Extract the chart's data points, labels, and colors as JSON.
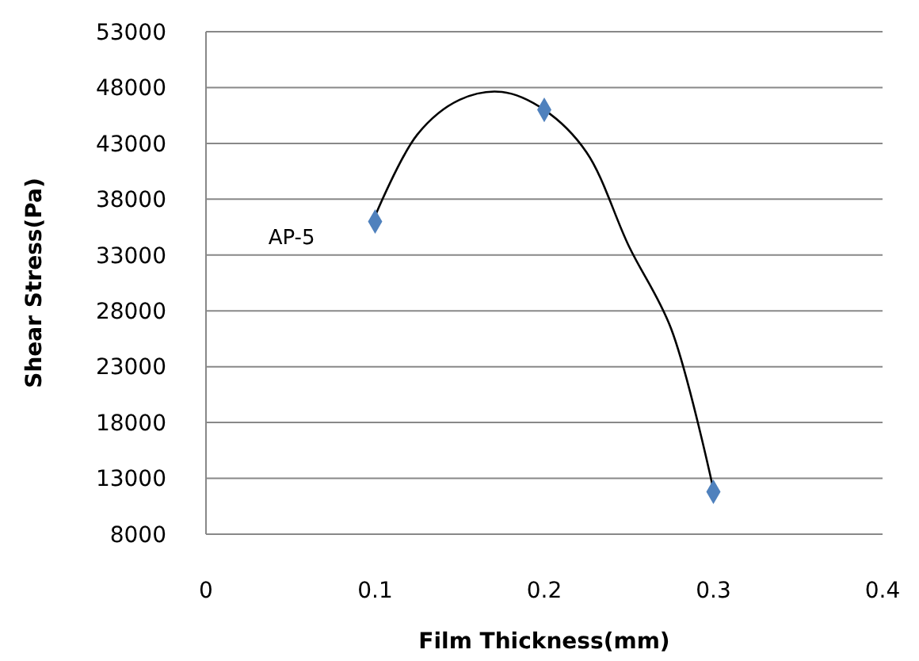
{
  "chart_data": {
    "type": "scatter",
    "xlabel": "Film Thickness(mm)",
    "ylabel": "Shear Stress(Pa)",
    "xlim": [
      0,
      0.4
    ],
    "xticks": [
      0,
      0.1,
      0.2,
      0.3,
      0.4
    ],
    "ylim": [
      8000,
      53000
    ],
    "yticks": [
      8000,
      13000,
      18000,
      23000,
      28000,
      33000,
      38000,
      43000,
      48000,
      53000
    ],
    "grid": "y",
    "series": [
      {
        "name": "AP-5",
        "type": "scatter",
        "marker": "diamond",
        "color": "#4f81bd",
        "x": [
          0.1,
          0.2,
          0.3
        ],
        "values": [
          36000,
          46000,
          11800
        ]
      },
      {
        "type": "line",
        "marker": "none",
        "color": "#000000",
        "x": [
          0.1,
          0.125,
          0.15,
          0.175,
          0.2,
          0.225,
          0.25,
          0.275,
          0.3
        ],
        "values": [
          36500,
          43800,
          46900,
          47600,
          46000,
          42200,
          33800,
          26400,
          12000
        ]
      }
    ]
  }
}
